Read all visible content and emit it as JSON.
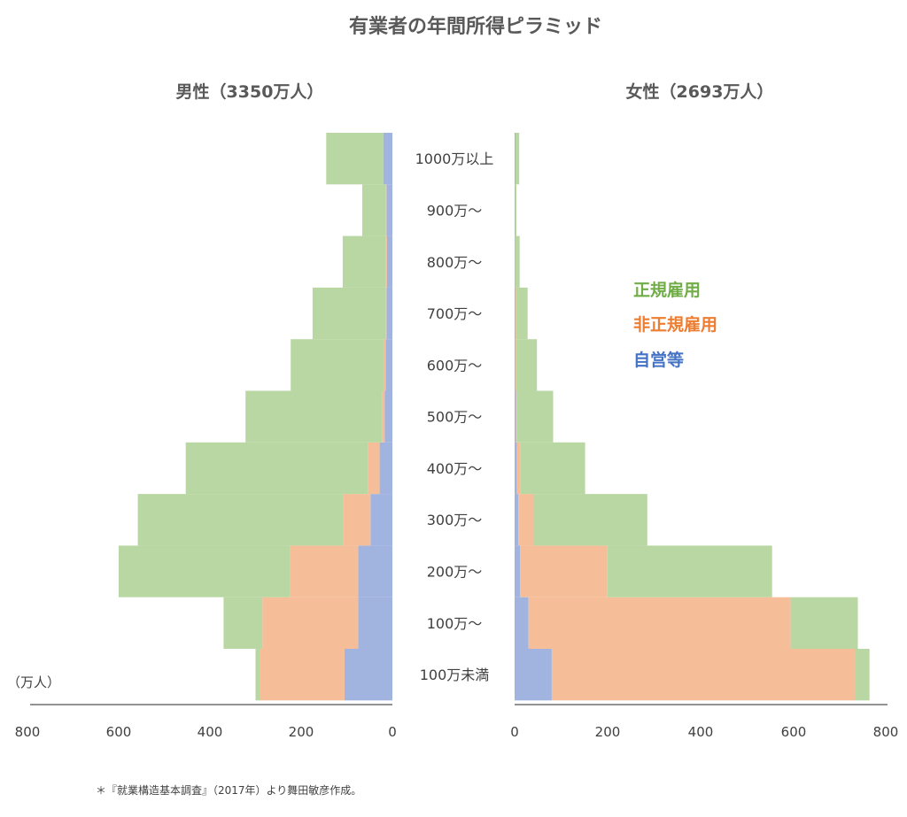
{
  "chart_data": {
    "type": "bar",
    "title": "有業者の年間所得ピラミッド",
    "panels": [
      {
        "side": "left",
        "title": "男性（3350万人）"
      },
      {
        "side": "right",
        "title": "女性（2693万人）"
      }
    ],
    "categories": [
      "100万未満",
      "100万～",
      "200万～",
      "300万～",
      "400万～",
      "500万～",
      "600万～",
      "700万～",
      "800万～",
      "900万～",
      "1000万以上"
    ],
    "stack_order": [
      "自営等",
      "非正規雇用",
      "正規雇用"
    ],
    "series_colors": {
      "正規雇用": "#b9d7a2",
      "非正規雇用": "#f5bd98",
      "自営等": "#a1b3df"
    },
    "male": {
      "自営等": [
        105,
        75,
        75,
        48,
        28,
        17,
        15,
        13,
        12,
        13,
        20
      ],
      "非正規雇用": [
        185,
        210,
        150,
        60,
        25,
        5,
        3,
        2,
        2,
        1,
        0
      ],
      "正規雇用": [
        10,
        85,
        375,
        450,
        400,
        300,
        205,
        160,
        95,
        52,
        125
      ]
    },
    "female": {
      "自営等": [
        80,
        30,
        12,
        8,
        5,
        3,
        2,
        2,
        1,
        1,
        2
      ],
      "非正規雇用": [
        655,
        565,
        188,
        33,
        7,
        2,
        1,
        1,
        0,
        0,
        0
      ],
      "正規雇用": [
        30,
        145,
        355,
        245,
        140,
        78,
        45,
        25,
        10,
        3,
        8
      ]
    },
    "xlim": [
      0,
      800
    ],
    "x_ticks": [
      "800",
      "600",
      "400",
      "200",
      "0"
    ],
    "x_ticks_right": [
      "0",
      "200",
      "400",
      "600",
      "800"
    ],
    "unit_label": "（万人）",
    "legend": [
      "正規雇用",
      "非正規雇用",
      "自営等"
    ],
    "legend_position": "right",
    "grid": false
  },
  "source_note": "＊『就業構造基本調査』（2017年）より舞田敏彦作成。"
}
